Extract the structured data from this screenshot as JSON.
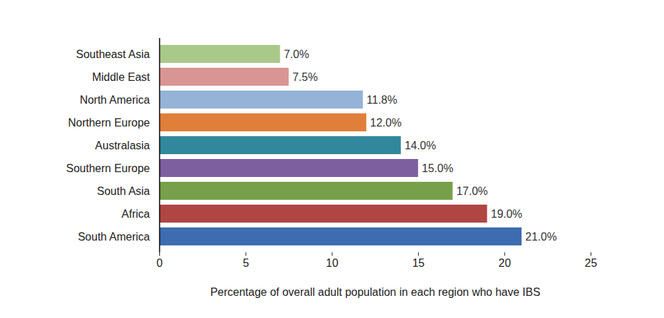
{
  "chart_data": {
    "type": "bar",
    "orientation": "horizontal",
    "categories": [
      "Southeast Asia",
      "Middle East",
      "North America",
      "Northern Europe",
      "Australasia",
      "Southern Europe",
      "South Asia",
      "Africa",
      "South America"
    ],
    "values": [
      7.0,
      7.5,
      11.8,
      12.0,
      14.0,
      15.0,
      17.0,
      19.0,
      21.0
    ],
    "value_labels": [
      "7.0%",
      "7.5%",
      "11.8%",
      "12.0%",
      "14.0%",
      "15.0%",
      "17.0%",
      "19.0%",
      "21.0%"
    ],
    "colors": [
      "#a9c98a",
      "#d99594",
      "#95b3d7",
      "#e07f3a",
      "#31879c",
      "#7d5fa0",
      "#77a04a",
      "#b04643",
      "#3d6db0"
    ],
    "x_label": "Percentage of overall adult population in each region who have IBS",
    "xlim": [
      0,
      25
    ],
    "xticks": [
      0,
      5,
      10,
      15,
      20,
      25
    ],
    "data_labels": true,
    "grid": false
  }
}
